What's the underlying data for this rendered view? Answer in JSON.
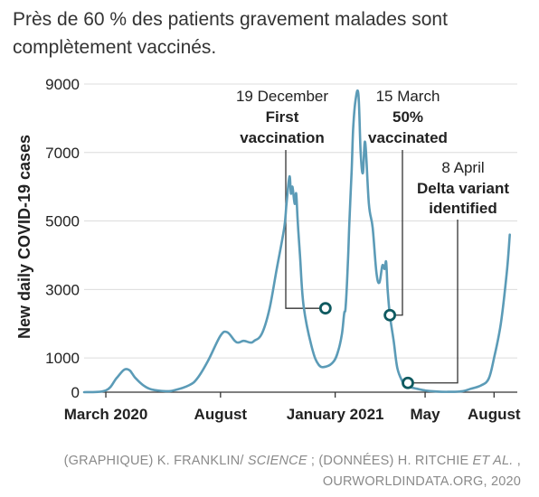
{
  "title": "Près de 60 % des patients gravement malades sont complètement vaccinés.",
  "credit": {
    "line1_a": "(GRAPHIQUE) K. FRANKLIN/ ",
    "line1_b": "SCIENCE",
    "line1_c": " ; (DONNÉES) H. RITCHIE ",
    "line1_d": "ET AL.",
    "line1_e": " ,",
    "line2": "OURWORLDINDATA.ORG, 2020"
  },
  "chart_data": {
    "type": "line",
    "title": "",
    "xlabel": "",
    "ylabel": "New daily COVID-19 cases",
    "x_range": [
      "2020-02-01",
      "2021-09-01"
    ],
    "ylim": [
      0,
      9000
    ],
    "y_ticks": [
      0,
      1000,
      3000,
      5000,
      7000,
      9000
    ],
    "x_ticks": [
      {
        "label": "March 2020",
        "date": "2020-03-01"
      },
      {
        "label": "August",
        "date": "2020-08-01"
      },
      {
        "label": "January 2021",
        "date": "2021-01-01"
      },
      {
        "label": "May",
        "date": "2021-05-01"
      },
      {
        "label": "August",
        "date": "2021-08-01"
      }
    ],
    "grid": "horizontal",
    "line_color": "#5b9bb7",
    "series": [
      {
        "x": [
          "2020-02-01",
          "2020-03-01",
          "2020-03-15",
          "2020-03-25",
          "2020-04-01",
          "2020-04-05",
          "2020-04-10",
          "2020-04-20",
          "2020-05-01",
          "2020-05-20",
          "2020-06-01",
          "2020-06-20",
          "2020-07-01",
          "2020-07-15",
          "2020-08-01",
          "2020-08-10",
          "2020-08-20",
          "2020-08-25",
          "2020-09-01",
          "2020-09-10",
          "2020-09-15",
          "2020-09-25",
          "2020-10-05",
          "2020-10-15",
          "2020-10-25",
          "2020-10-28",
          "2020-11-01",
          "2020-11-03",
          "2020-11-05",
          "2020-11-08",
          "2020-11-10",
          "2020-11-12",
          "2020-11-15",
          "2020-11-20",
          "2020-12-01",
          "2020-12-10",
          "2020-12-20",
          "2020-12-30",
          "2021-01-05",
          "2021-01-10",
          "2021-01-13",
          "2021-01-15",
          "2021-01-18",
          "2021-01-20",
          "2021-01-23",
          "2021-01-25",
          "2021-01-28",
          "2021-02-01",
          "2021-02-04",
          "2021-02-07",
          "2021-02-10",
          "2021-02-15",
          "2021-02-20",
          "2021-02-25",
          "2021-03-01",
          "2021-03-05",
          "2021-03-08",
          "2021-03-10",
          "2021-03-12",
          "2021-03-15",
          "2021-03-20",
          "2021-03-25",
          "2021-04-01",
          "2021-04-05",
          "2021-04-10",
          "2021-04-20",
          "2021-05-01",
          "2021-05-15",
          "2021-06-01",
          "2021-06-20",
          "2021-07-01",
          "2021-07-15",
          "2021-07-25",
          "2021-08-01",
          "2021-08-10",
          "2021-08-18",
          "2021-08-22"
        ],
        "y": [
          0,
          50,
          400,
          650,
          650,
          550,
          400,
          200,
          80,
          30,
          60,
          200,
          400,
          900,
          1650,
          1750,
          1500,
          1450,
          1500,
          1450,
          1500,
          1700,
          2400,
          3600,
          4800,
          5500,
          6300,
          5800,
          6000,
          5500,
          5800,
          5000,
          4000,
          2500,
          1300,
          800,
          750,
          900,
          1200,
          1700,
          2300,
          2500,
          3800,
          5000,
          6500,
          7700,
          8500,
          8700,
          7000,
          6400,
          7300,
          5500,
          4800,
          3500,
          3200,
          3700,
          3600,
          3800,
          3000,
          2250,
          1500,
          700,
          300,
          200,
          150,
          100,
          50,
          20,
          10,
          30,
          100,
          200,
          400,
          1000,
          2000,
          3500,
          4600
        ]
      }
    ],
    "markers": [
      {
        "date": "2020-12-19",
        "value": 2450
      },
      {
        "date": "2021-03-15",
        "value": 2250
      },
      {
        "date": "2021-04-08",
        "value": 270
      }
    ],
    "annotations": [
      {
        "date_label": "19 December",
        "line1": "First",
        "line2": "vaccination"
      },
      {
        "date_label": "15 March",
        "line1": "50%",
        "line2": "vaccinated"
      },
      {
        "date_label": "8 April",
        "line1": "Delta variant",
        "line2": "identified"
      }
    ]
  }
}
